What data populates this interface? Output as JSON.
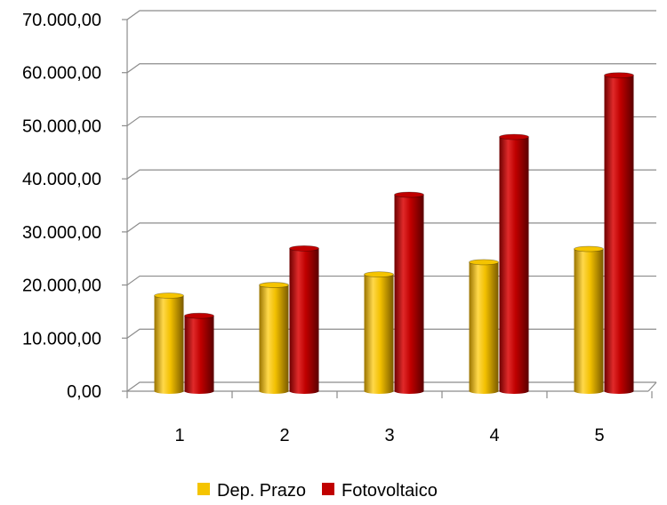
{
  "chart_data": {
    "type": "bar",
    "categories": [
      "1",
      "2",
      "3",
      "4",
      "5"
    ],
    "series": [
      {
        "name": "Dep. Prazo",
        "color": "#F5C400",
        "values": [
          18000,
          20000,
          22000,
          24300,
          26800
        ]
      },
      {
        "name": "Fotovoltaico",
        "color": "#C00000",
        "values": [
          14200,
          26900,
          37000,
          47900,
          59500
        ]
      }
    ],
    "ylim": [
      0,
      70000
    ],
    "yticks": [
      "0,00",
      "10.000,00",
      "20.000,00",
      "30.000,00",
      "40.000,00",
      "50.000,00",
      "60.000,00",
      "70.000,00"
    ],
    "grid": true,
    "legend_position": "bottom",
    "style": "3d-cylinder"
  }
}
